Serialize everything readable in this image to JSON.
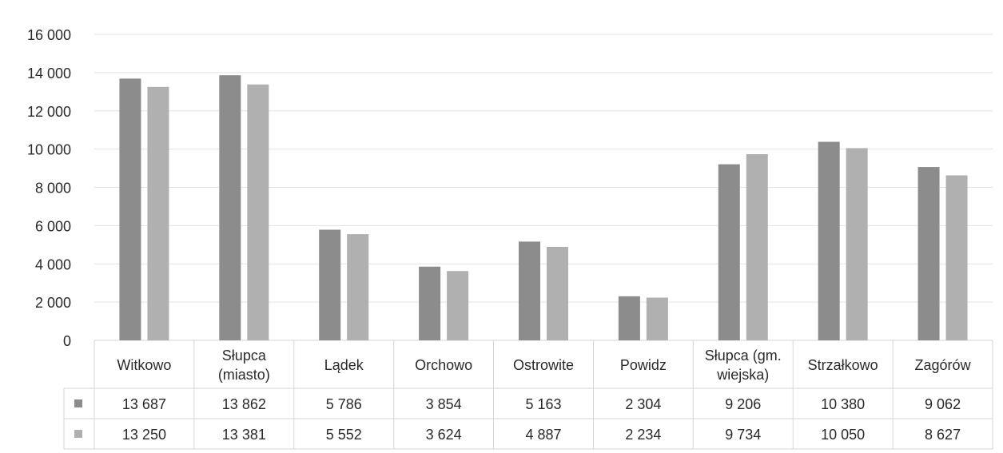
{
  "chart_data": {
    "type": "bar",
    "categories": [
      [
        "Witkowo"
      ],
      [
        "Słupca",
        "(miasto)"
      ],
      [
        "Lądek"
      ],
      [
        "Orchowo"
      ],
      [
        "Ostrowite"
      ],
      [
        "Powidz"
      ],
      [
        "Słupca (gm.",
        "wiejska)"
      ],
      [
        "Strzałkowo"
      ],
      [
        "Zagórów"
      ]
    ],
    "series": [
      {
        "values": [
          13687,
          13862,
          5786,
          3854,
          5163,
          2304,
          9206,
          10380,
          9062
        ],
        "value_labels": [
          "13 687",
          "13 862",
          "5 786",
          "3 854",
          "5 163",
          "2 304",
          "9 206",
          "10 380",
          "9 062"
        ],
        "color": "#8c8c8c"
      },
      {
        "values": [
          13250,
          13381,
          5552,
          3624,
          4887,
          2234,
          9734,
          10050,
          8627
        ],
        "value_labels": [
          "13 250",
          "13 381",
          "5 552",
          "3 624",
          "4 887",
          "2 234",
          "9 734",
          "10 050",
          "8 627"
        ],
        "color": "#b0b0b0"
      }
    ],
    "ylim": [
      0,
      16000
    ],
    "yticks": [
      0,
      2000,
      4000,
      6000,
      8000,
      10000,
      12000,
      14000,
      16000
    ],
    "ytick_labels": [
      "0",
      "2 000",
      "4 000",
      "6 000",
      "8 000",
      "10 000",
      "12 000",
      "14 000",
      "16 000"
    ],
    "grid": true,
    "legend": "data-table"
  }
}
